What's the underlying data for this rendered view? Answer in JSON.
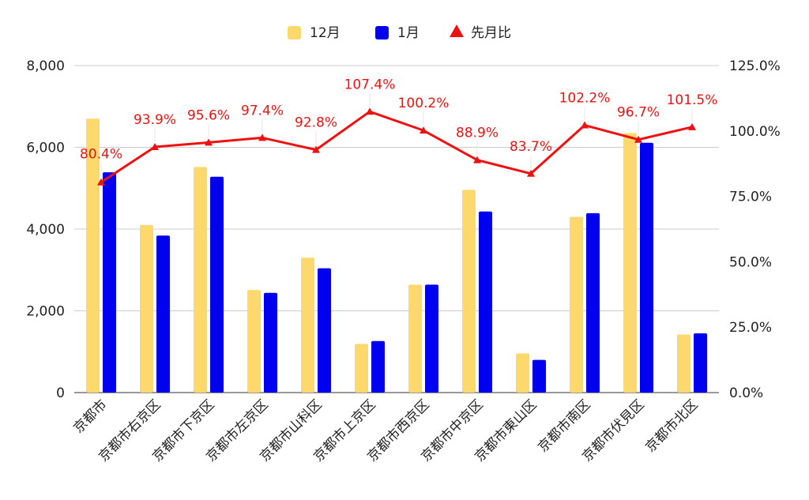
{
  "chart_data": {
    "type": "bar",
    "categories": [
      "京都市",
      "京都市右京区",
      "京都市下京区",
      "京都市左京区",
      "京都市山科区",
      "京都市上京区",
      "京都市西京区",
      "京都市中京区",
      "京都市東山区",
      "京都市南区",
      "京都市伏見区",
      "京都市北区"
    ],
    "series": [
      {
        "name": "12月",
        "type": "bar",
        "axis": "left",
        "color": "#fdd96d",
        "values": [
          6700,
          4100,
          5520,
          2510,
          3300,
          1190,
          2640,
          4960,
          960,
          4300,
          6350,
          1420
        ]
      },
      {
        "name": "1月",
        "type": "bar",
        "axis": "left",
        "color": "#0000ee",
        "values": [
          5390,
          3840,
          5280,
          2440,
          3040,
          1260,
          2640,
          4430,
          800,
          4390,
          6110,
          1450
        ]
      },
      {
        "name": "先月比",
        "type": "line",
        "axis": "right",
        "color": "#ee1111",
        "values": [
          80.4,
          93.9,
          95.6,
          97.4,
          92.8,
          107.4,
          100.2,
          88.9,
          83.7,
          102.2,
          96.7,
          101.5
        ],
        "labels": [
          "80.4%",
          "93.9%",
          "95.6%",
          "97.4%",
          "92.8%",
          "107.4%",
          "100.2%",
          "88.9%",
          "83.7%",
          "102.2%",
          "96.7%",
          "101.5%"
        ]
      }
    ],
    "left_axis": {
      "min": 0,
      "max": 8000,
      "ticks": [
        "0",
        "2,000",
        "4,000",
        "6,000",
        "8,000"
      ]
    },
    "right_axis": {
      "min": 0,
      "max": 125,
      "ticks": [
        "0.0%",
        "25.0%",
        "50.0%",
        "75.0%",
        "100.0%",
        "125.0%"
      ]
    },
    "legend_position": "top",
    "grid": true
  }
}
